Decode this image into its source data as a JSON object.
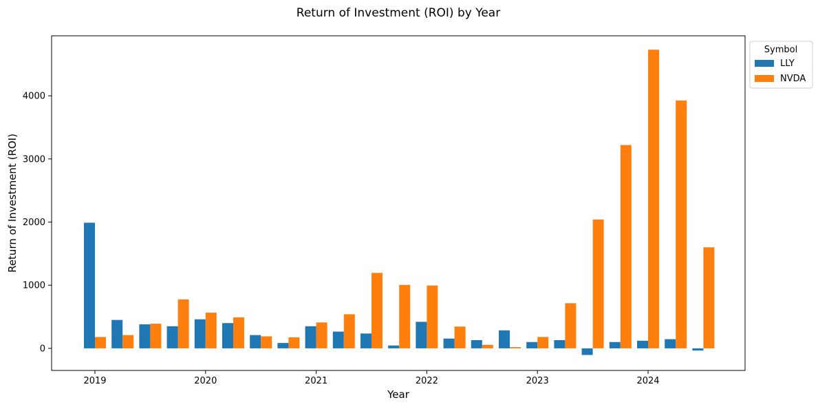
{
  "chart_data": {
    "type": "bar",
    "title": "Return of Investment (ROI) by Year",
    "xlabel": "Year",
    "ylabel": "Return of Investment (ROI)",
    "ylim": [
      -350,
      4950
    ],
    "yticks": [
      0,
      1000,
      2000,
      3000,
      4000
    ],
    "xticks": [
      "2019",
      "2020",
      "2021",
      "2022",
      "2023",
      "2024"
    ],
    "xtick_group_index": [
      0,
      4,
      8,
      12,
      16,
      20
    ],
    "grid": false,
    "legend": {
      "title": "Symbol",
      "placement": "outside-top-right"
    },
    "series": [
      {
        "name": "LLY",
        "color": "#1f77b4",
        "values": [
          1990,
          450,
          380,
          350,
          460,
          400,
          210,
          85,
          350,
          265,
          235,
          45,
          420,
          155,
          130,
          285,
          100,
          130,
          -105,
          100,
          120,
          145,
          -35
        ]
      },
      {
        "name": "NVDA",
        "color": "#ff7f0e",
        "values": [
          180,
          210,
          390,
          775,
          565,
          490,
          190,
          175,
          410,
          540,
          1195,
          1005,
          995,
          345,
          55,
          20,
          180,
          715,
          2040,
          3220,
          4730,
          3925,
          1600
        ]
      }
    ]
  }
}
